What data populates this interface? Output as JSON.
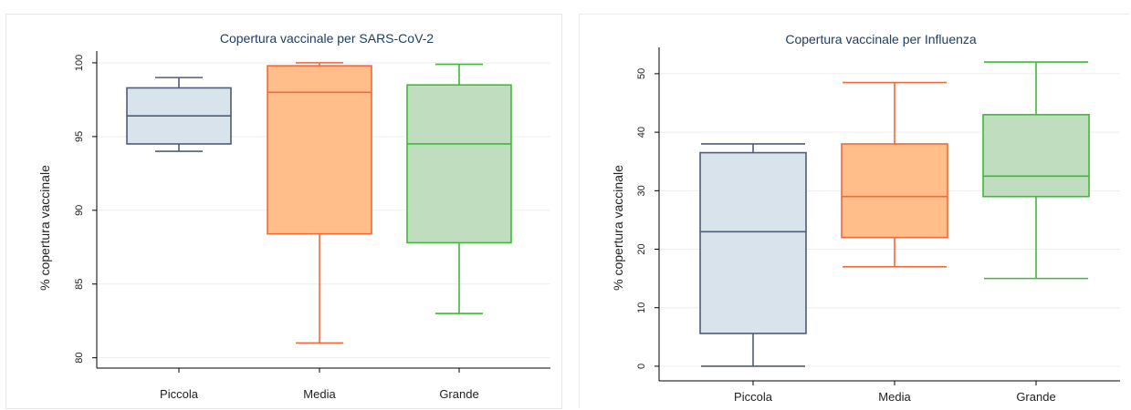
{
  "chart_data": [
    {
      "type": "box",
      "title": "Copertura vaccinale per SARS-CoV-2",
      "ylabel": "% copertura vaccinale",
      "xlabel": "",
      "ylim": [
        79.3,
        100.8
      ],
      "yticks": [
        80,
        85,
        90,
        95,
        100
      ],
      "grid": true,
      "categories": [
        "Piccola",
        "Media",
        "Grande"
      ],
      "boxes": [
        {
          "category": "Piccola",
          "min": 94.0,
          "q1": 94.5,
          "median": 96.4,
          "q3": 98.3,
          "max": 99.0
        },
        {
          "category": "Media",
          "min": 81.0,
          "q1": 88.4,
          "median": 98.0,
          "q3": 99.8,
          "max": 100.0
        },
        {
          "category": "Grande",
          "min": 83.0,
          "q1": 87.8,
          "median": 94.5,
          "q3": 98.5,
          "max": 99.9
        }
      ]
    },
    {
      "type": "box",
      "title": "Copertura vaccinale per Influenza",
      "ylabel": "% copertura vaccinale",
      "xlabel": "",
      "ylim": [
        -2.5,
        54.5
      ],
      "yticks": [
        0,
        10,
        20,
        30,
        40,
        50
      ],
      "grid": true,
      "categories": [
        "Piccola",
        "Media",
        "Grande"
      ],
      "boxes": [
        {
          "category": "Piccola",
          "min": 0.0,
          "q1": 5.6,
          "median": 23.0,
          "q3": 36.5,
          "max": 38.0
        },
        {
          "category": "Media",
          "min": 17.0,
          "q1": 22.0,
          "median": 29.0,
          "q3": 38.0,
          "max": 48.5
        },
        {
          "category": "Grande",
          "min": 15.0,
          "q1": 29.0,
          "median": 32.5,
          "q3": 43.0,
          "max": 52.0
        }
      ]
    }
  ],
  "colors": {
    "Piccola": {
      "stroke": "#4d5d7a",
      "fill": "#d8e3eb"
    },
    "Media": {
      "stroke": "#f26a3a",
      "fill": "#ffbe8a"
    },
    "Grande": {
      "stroke": "#3dbb36",
      "fill": "#c1ddc0"
    }
  }
}
